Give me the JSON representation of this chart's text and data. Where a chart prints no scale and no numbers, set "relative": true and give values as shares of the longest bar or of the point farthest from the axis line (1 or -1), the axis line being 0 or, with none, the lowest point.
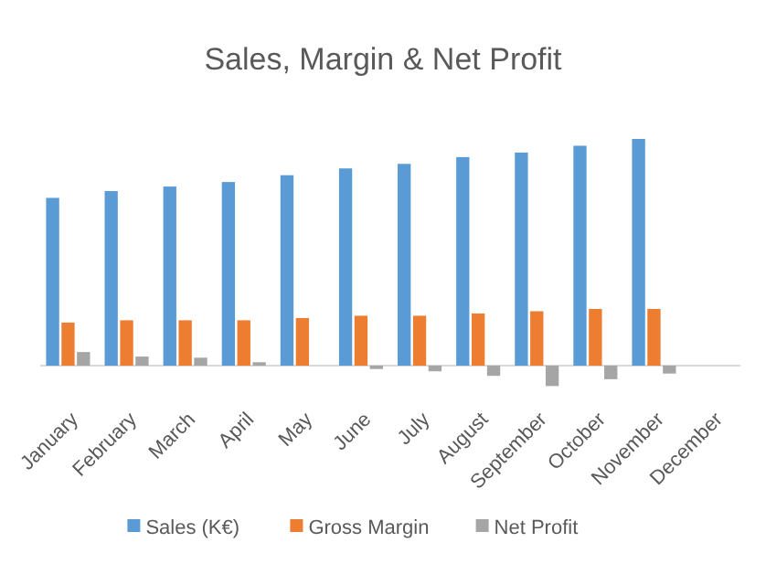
{
  "chart_data": {
    "type": "bar",
    "title": "Sales, Margin & Net Profit",
    "relative": true,
    "legend": "bottom",
    "categories": [
      "January",
      "February",
      "March",
      "April",
      "May",
      "June",
      "July",
      "August",
      "September",
      "October",
      "November",
      "December"
    ],
    "series": [
      {
        "name": "Sales (K€)",
        "color": "#5b9bd5",
        "values": [
          0.74,
          0.77,
          0.79,
          0.81,
          0.84,
          0.87,
          0.89,
          0.92,
          0.94,
          0.97,
          1,
          null
        ]
      },
      {
        "name": "Gross Margin",
        "color": "#ed7d31",
        "values": [
          0.19,
          0.2,
          0.2,
          0.2,
          0.21,
          0.22,
          0.22,
          0.23,
          0.24,
          0.25,
          0.25,
          null
        ]
      },
      {
        "name": "Net Profit",
        "color": "#a5a5a5",
        "values": [
          0.06,
          0.04,
          0.035,
          0.015,
          0,
          -0.015,
          -0.025,
          -0.045,
          -0.09,
          -0.06,
          -0.035,
          null
        ]
      }
    ]
  }
}
